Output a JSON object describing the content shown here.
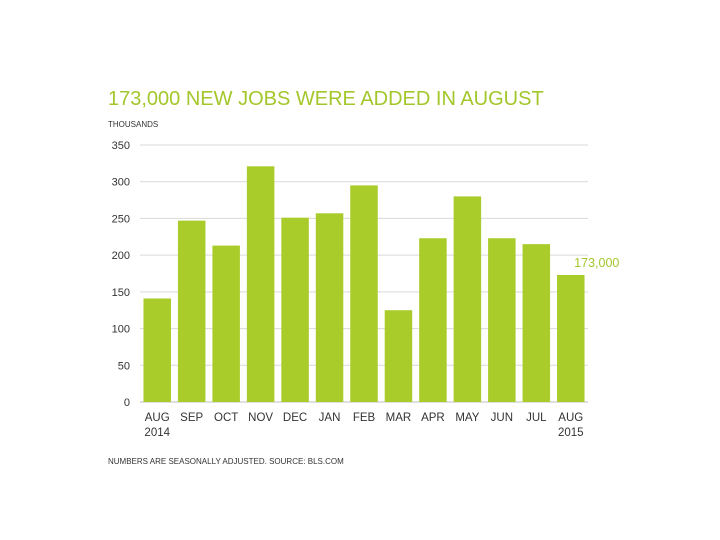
{
  "title": "173,000 NEW JOBS WERE ADDED IN AUGUST",
  "unit_label": "THOUSANDS",
  "footnote": "NUMBERS ARE SEASONALLY ADJUSTED. SOURCE: BLS.COM",
  "colors": {
    "bar": "#a9cc2a",
    "accent_text": "#a3c72b",
    "grid": "#d9d9d9"
  },
  "chart_data": {
    "type": "bar",
    "title": "173,000 NEW JOBS WERE ADDED IN AUGUST",
    "ylabel": "THOUSANDS",
    "xlabel": "",
    "ylim": [
      0,
      350
    ],
    "yticks": [
      0,
      50,
      100,
      150,
      200,
      250,
      300,
      350
    ],
    "grid": true,
    "categories": [
      "AUG",
      "SEP",
      "OCT",
      "NOV",
      "DEC",
      "JAN",
      "FEB",
      "MAR",
      "APR",
      "MAY",
      "JUN",
      "JUL",
      "AUG"
    ],
    "category_sublabels": [
      "2014",
      "",
      "",
      "",
      "",
      "",
      "",
      "",
      "",
      "",
      "",
      "",
      "2015"
    ],
    "values": [
      141,
      247,
      213,
      321,
      251,
      257,
      295,
      125,
      223,
      280,
      223,
      215,
      173
    ],
    "annotation": {
      "index": 12,
      "text": "173,000"
    }
  }
}
